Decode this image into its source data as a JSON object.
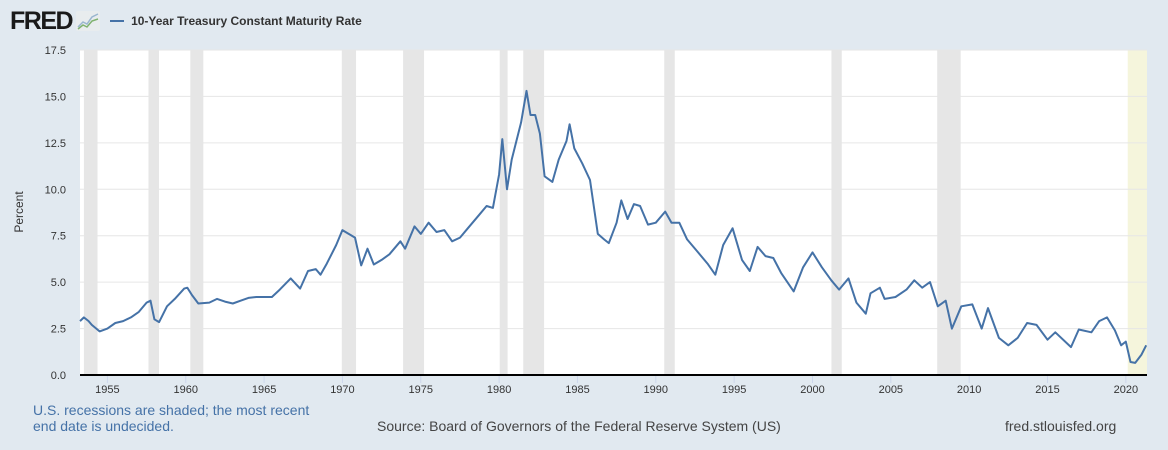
{
  "header": {
    "logo_text": "FRED",
    "logo_icon": "line-chart-icon"
  },
  "colors": {
    "line": "#4572a7",
    "recession": "#e6e6e6",
    "recent_recession": "#f5f5dc",
    "grid": "#e6e6e6",
    "axis": "#000000",
    "background": "#e1e9f0"
  },
  "footer": {
    "note": "U.S. recessions are shaded; the most recent end date is undecided.",
    "note_line1": "U.S. recessions are shaded; the most recent",
    "note_line2": "end date is undecided.",
    "source": "Source: Board of Governors of the Federal Reserve System (US)",
    "site": "fred.stlouisfed.org"
  },
  "chart_data": {
    "type": "line",
    "title": "10-Year Treasury Constant Maturity Rate",
    "xlabel": "",
    "ylabel": "Percent",
    "xlim": [
      1953.25,
      2021.35
    ],
    "ylim": [
      0,
      17.5
    ],
    "grid": true,
    "legend": "top-left",
    "yticks": [
      0,
      2.5,
      5,
      7.5,
      10,
      12.5,
      15,
      17.5
    ],
    "ytick_labels": [
      "0.0",
      "2.5",
      "5.0",
      "7.5",
      "10.0",
      "12.5",
      "15.0",
      "17.5"
    ],
    "xticks": [
      1955,
      1960,
      1965,
      1970,
      1975,
      1980,
      1985,
      1990,
      1995,
      2000,
      2005,
      2010,
      2015,
      2020
    ],
    "xtick_labels": [
      "1955",
      "1960",
      "1965",
      "1970",
      "1975",
      "1980",
      "1985",
      "1990",
      "1995",
      "2000",
      "2005",
      "2010",
      "2015",
      "2020"
    ],
    "recessions": [
      [
        1953.5,
        1954.37
      ],
      [
        1957.62,
        1958.29
      ],
      [
        1960.29,
        1961.12
      ],
      [
        1969.96,
        1970.87
      ],
      [
        1973.87,
        1975.21
      ],
      [
        1980.04,
        1980.54
      ],
      [
        1981.54,
        1982.87
      ],
      [
        1990.54,
        1991.21
      ],
      [
        2001.21,
        2001.87
      ],
      [
        2007.96,
        2009.46
      ]
    ],
    "recent_recession": [
      2020.12,
      2021.35
    ],
    "series": [
      {
        "name": "10-Year Treasury Constant Maturity Rate",
        "x": [
          1953.25,
          1953.5,
          1953.8,
          1954.0,
          1954.5,
          1955.0,
          1955.5,
          1956.0,
          1956.5,
          1957.0,
          1957.5,
          1957.75,
          1958.0,
          1958.3,
          1958.8,
          1959.3,
          1959.9,
          1960.1,
          1960.4,
          1960.8,
          1961.5,
          1962.0,
          1962.5,
          1963.0,
          1963.5,
          1964.0,
          1964.5,
          1965.0,
          1965.5,
          1966.0,
          1966.7,
          1967.3,
          1967.8,
          1968.3,
          1968.6,
          1969.0,
          1969.6,
          1970.0,
          1970.4,
          1970.8,
          1971.2,
          1971.6,
          1972.0,
          1972.5,
          1973.0,
          1973.7,
          1974.0,
          1974.6,
          1975.0,
          1975.5,
          1976.0,
          1976.5,
          1977.0,
          1977.5,
          1978.0,
          1978.7,
          1979.2,
          1979.6,
          1980.0,
          1980.2,
          1980.5,
          1980.8,
          1981.1,
          1981.4,
          1981.75,
          1982.0,
          1982.3,
          1982.6,
          1982.9,
          1983.4,
          1983.8,
          1984.3,
          1984.5,
          1984.8,
          1985.3,
          1985.8,
          1986.3,
          1986.7,
          1987.0,
          1987.5,
          1987.8,
          1988.2,
          1988.6,
          1989.0,
          1989.5,
          1990.0,
          1990.6,
          1991.0,
          1991.5,
          1992.0,
          1992.7,
          1993.3,
          1993.8,
          1994.3,
          1994.9,
          1995.5,
          1996.0,
          1996.5,
          1997.0,
          1997.5,
          1998.0,
          1998.8,
          1999.4,
          2000.0,
          2000.6,
          2001.2,
          2001.7,
          2002.3,
          2002.8,
          2003.4,
          2003.7,
          2004.3,
          2004.6,
          2005.3,
          2006.0,
          2006.5,
          2007.0,
          2007.5,
          2008.0,
          2008.5,
          2008.9,
          2009.5,
          2010.2,
          2010.8,
          2011.2,
          2011.9,
          2012.5,
          2013.1,
          2013.7,
          2014.3,
          2015.0,
          2015.5,
          2016.5,
          2017.0,
          2017.8,
          2018.3,
          2018.8,
          2019.3,
          2019.7,
          2020.0,
          2020.3,
          2020.6,
          2021.0,
          2021.3
        ],
        "y": [
          2.9,
          3.1,
          2.9,
          2.7,
          2.35,
          2.5,
          2.8,
          2.9,
          3.1,
          3.4,
          3.9,
          4.0,
          3.0,
          2.85,
          3.7,
          4.1,
          4.65,
          4.7,
          4.3,
          3.85,
          3.9,
          4.1,
          3.95,
          3.85,
          4.0,
          4.15,
          4.2,
          4.2,
          4.2,
          4.6,
          5.2,
          4.65,
          5.6,
          5.7,
          5.4,
          6.0,
          7.0,
          7.8,
          7.6,
          7.4,
          5.9,
          6.8,
          5.95,
          6.2,
          6.5,
          7.2,
          6.8,
          8.0,
          7.6,
          8.2,
          7.7,
          7.8,
          7.2,
          7.4,
          7.9,
          8.6,
          9.1,
          9.0,
          10.8,
          12.7,
          10.0,
          11.6,
          12.6,
          13.6,
          15.3,
          14.0,
          14.0,
          13.0,
          10.7,
          10.4,
          11.6,
          12.6,
          13.5,
          12.2,
          11.4,
          10.5,
          7.6,
          7.3,
          7.1,
          8.2,
          9.4,
          8.4,
          9.2,
          9.1,
          8.1,
          8.2,
          8.8,
          8.2,
          8.2,
          7.3,
          6.6,
          6.0,
          5.4,
          7.0,
          7.9,
          6.2,
          5.6,
          6.9,
          6.4,
          6.3,
          5.5,
          4.5,
          5.8,
          6.6,
          5.8,
          5.1,
          4.6,
          5.2,
          3.9,
          3.3,
          4.4,
          4.7,
          4.1,
          4.2,
          4.6,
          5.1,
          4.7,
          5.0,
          3.7,
          4.0,
          2.5,
          3.7,
          3.8,
          2.5,
          3.6,
          2.0,
          1.6,
          2.0,
          2.8,
          2.7,
          1.9,
          2.3,
          1.5,
          2.45,
          2.3,
          2.9,
          3.1,
          2.4,
          1.6,
          1.8,
          0.7,
          0.65,
          1.1,
          1.6
        ]
      }
    ]
  }
}
